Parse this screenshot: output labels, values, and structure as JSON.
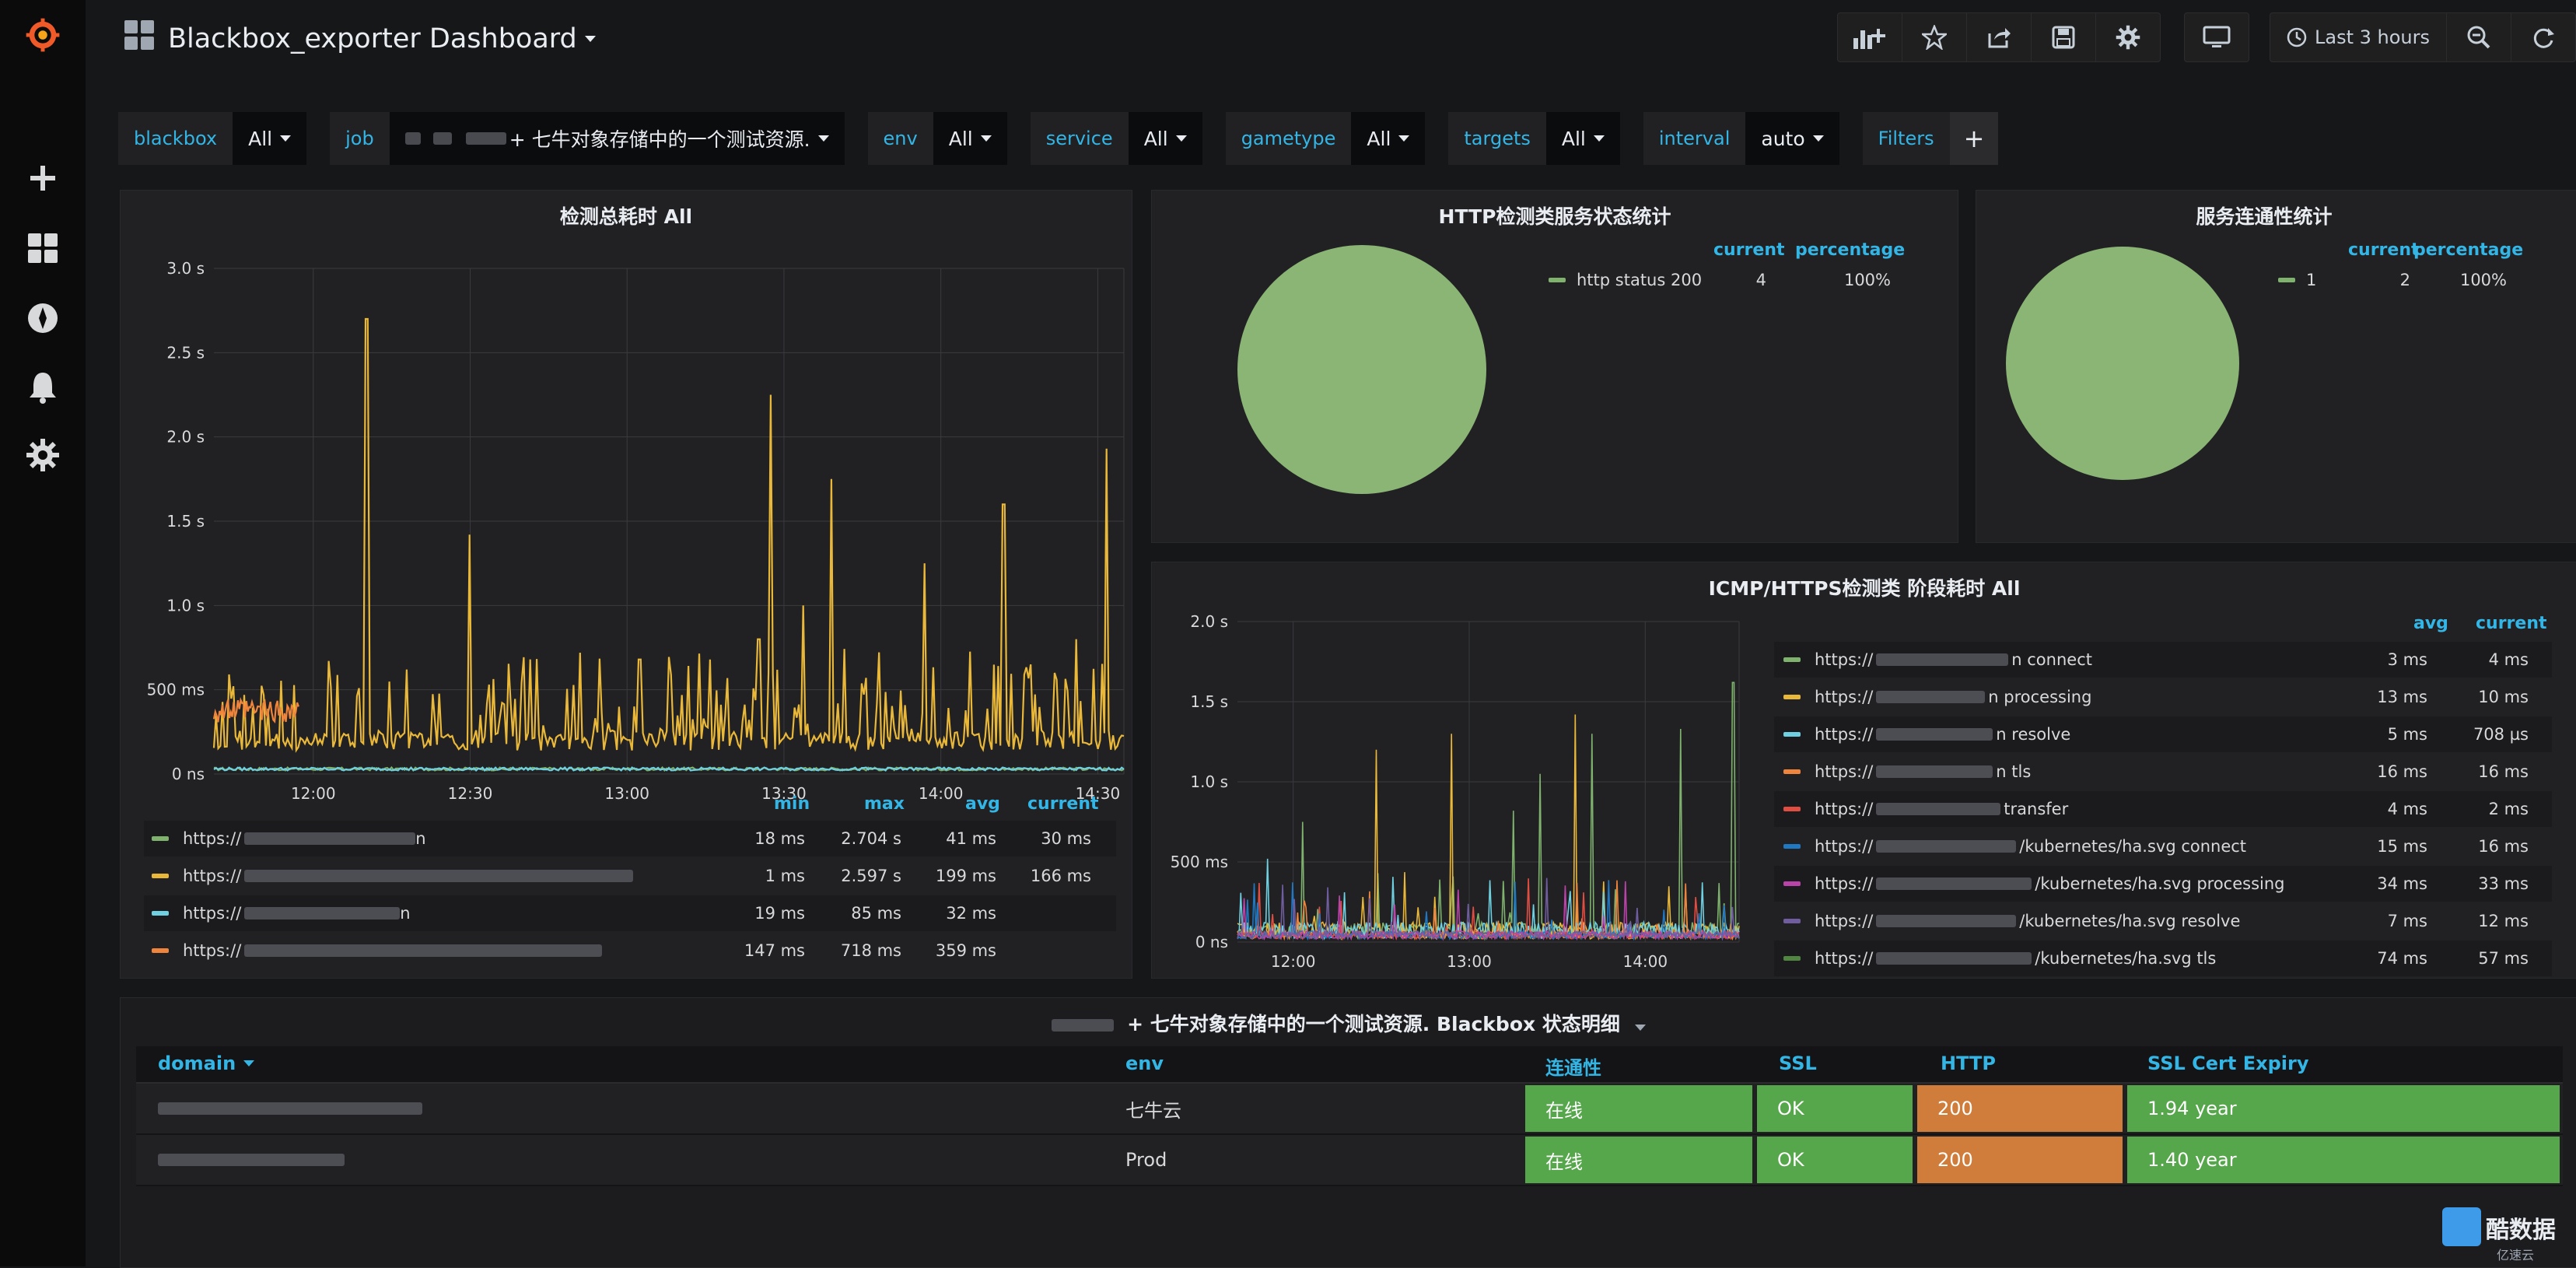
{
  "dashboard": {
    "title": "Blackbox_exporter Dashboard",
    "time_range": "Last 3 hours"
  },
  "sidebar": {
    "icons": [
      "grafana-logo-icon",
      "plus-icon",
      "dashboards-icon",
      "explore-icon",
      "alerting-bell-icon",
      "gear-icon"
    ]
  },
  "toolbar": {
    "icons": [
      "add-panel-icon",
      "star-icon",
      "share-icon",
      "save-icon",
      "settings-gear-icon",
      "tv-monitor-icon",
      "clock-icon",
      "zoom-out-icon",
      "refresh-icon"
    ]
  },
  "variables": [
    {
      "label": "blackbox",
      "value": "All"
    },
    {
      "label": "job",
      "value": "+ 七牛对象存储中的一个测试资源."
    },
    {
      "label": "env",
      "value": "All"
    },
    {
      "label": "service",
      "value": "All"
    },
    {
      "label": "gametype",
      "value": "All"
    },
    {
      "label": "targets",
      "value": "All"
    },
    {
      "label": "interval",
      "value": "auto"
    }
  ],
  "filters_label": "Filters",
  "filters_add": "+",
  "panel_probe_total": {
    "title": "检测总耗时 All",
    "legend_headers": [
      "min",
      "max",
      "avg",
      "current"
    ],
    "rows": [
      {
        "label": "https://",
        "suffix": "n",
        "min": "18 ms",
        "max": "2.704 s",
        "avg": "41 ms",
        "current": "30 ms",
        "color": "#7eb26d"
      },
      {
        "label": "https://",
        "suffix": "",
        "min": "1 ms",
        "max": "2.597 s",
        "avg": "199 ms",
        "current": "166 ms",
        "color": "#eab839"
      },
      {
        "label": "https://",
        "suffix": "n",
        "min": "19 ms",
        "max": "85 ms",
        "avg": "32 ms",
        "current": "",
        "color": "#6ed0e0"
      },
      {
        "label": "https://",
        "suffix": "",
        "min": "147 ms",
        "max": "718 ms",
        "avg": "359 ms",
        "current": "",
        "color": "#ef843c"
      }
    ]
  },
  "panel_http_status": {
    "title": "HTTP检测类服务状态统计",
    "legend_headers": [
      "current",
      "percentage"
    ],
    "rows": [
      {
        "label": "http status 200",
        "current": "4",
        "percentage": "100%",
        "color": "#7eb26d"
      }
    ]
  },
  "panel_connectivity": {
    "title": "服务连通性统计",
    "legend_headers": [
      "current",
      "percentage"
    ],
    "rows": [
      {
        "label": "1",
        "current": "2",
        "percentage": "100%",
        "color": "#7eb26d"
      }
    ]
  },
  "panel_icmp_phase": {
    "title": "ICMP/HTTPS检测类 阶段耗时 All",
    "legend_headers": [
      "avg",
      "current"
    ],
    "rows": [
      {
        "label": "https://",
        "suffix": "n connect",
        "avg": "3 ms",
        "current": "4 ms",
        "color": "#7eb26d"
      },
      {
        "label": "https://",
        "suffix": "n processing",
        "avg": "13 ms",
        "current": "10 ms",
        "color": "#eab839"
      },
      {
        "label": "https://",
        "suffix": "n resolve",
        "avg": "5 ms",
        "current": "708 µs",
        "color": "#6ed0e0"
      },
      {
        "label": "https://",
        "suffix": "n tls",
        "avg": "16 ms",
        "current": "16 ms",
        "color": "#ef843c"
      },
      {
        "label": "https://",
        "suffix": "transfer",
        "avg": "4 ms",
        "current": "2 ms",
        "color": "#e24d42"
      },
      {
        "label": "https://",
        "suffix": "/kubernetes/ha.svg connect",
        "avg": "15 ms",
        "current": "16 ms",
        "color": "#1f78c1"
      },
      {
        "label": "https://",
        "suffix": "/kubernetes/ha.svg processing",
        "avg": "34 ms",
        "current": "33 ms",
        "color": "#ba43a9"
      },
      {
        "label": "https://",
        "suffix": "/kubernetes/ha.svg resolve",
        "avg": "7 ms",
        "current": "12 ms",
        "color": "#705da0"
      },
      {
        "label": "https://",
        "suffix": "/kubernetes/ha.svg tls",
        "avg": "74 ms",
        "current": "57 ms",
        "color": "#508642"
      }
    ]
  },
  "status_table": {
    "title": "+ 七牛对象存储中的一个测试资源. Blackbox 状态明细",
    "columns": [
      "domain",
      "env",
      "连通性",
      "SSL",
      "HTTP",
      "SSL Cert Expiry"
    ],
    "rows": [
      {
        "domain": "",
        "env": "七牛云",
        "connectivity": "在线",
        "ssl": "OK",
        "http": "200",
        "expiry": "1.94 year"
      },
      {
        "domain": "",
        "env": "Prod",
        "connectivity": "在线",
        "ssl": "OK",
        "http": "200",
        "expiry": "1.40 year"
      }
    ],
    "colors": {
      "ok": "#56a64b",
      "warn": "#d07c3a"
    }
  },
  "watermark": {
    "text": "酷数据",
    "sub": "亿速云"
  },
  "chart_data": [
    {
      "type": "line",
      "title": "检测总耗时 All",
      "xlabel": "",
      "ylabel": "",
      "x_ticks": [
        "12:00",
        "12:30",
        "13:00",
        "13:30",
        "14:00",
        "14:30"
      ],
      "y_ticks": [
        "0 ns",
        "500 ms",
        "1.0 s",
        "1.5 s",
        "2.0 s",
        "2.5 s",
        "3.0 s"
      ],
      "ylim": [
        0,
        3.0
      ],
      "y_unit": "s",
      "x_range_hours": [
        "11:40",
        "14:35"
      ],
      "grid": true,
      "series": [
        {
          "color": "#7eb26d",
          "baseline": 0.03,
          "spikes": []
        },
        {
          "color": "#eab839",
          "baseline": 0.2,
          "spikes": [
            {
              "x": 12.17,
              "y": 2.7
            },
            {
              "x": 12.5,
              "y": 1.42
            },
            {
              "x": 12.3,
              "y": 0.62
            },
            {
              "x": 12.85,
              "y": 0.72
            },
            {
              "x": 13.04,
              "y": 0.68
            },
            {
              "x": 13.46,
              "y": 2.25
            },
            {
              "x": 13.42,
              "y": 0.8
            },
            {
              "x": 13.65,
              "y": 1.75
            },
            {
              "x": 13.56,
              "y": 1.0
            },
            {
              "x": 13.95,
              "y": 1.25
            },
            {
              "x": 14.2,
              "y": 1.6
            },
            {
              "x": 14.43,
              "y": 0.8
            },
            {
              "x": 14.53,
              "y": 1.93
            }
          ]
        },
        {
          "color": "#6ed0e0",
          "baseline": 0.03,
          "spikes": []
        },
        {
          "color": "#ef843c",
          "baseline": 0.36,
          "spikes": [
            {
              "x": 11.7,
              "y": 0.45
            }
          ]
        }
      ]
    },
    {
      "type": "pie",
      "title": "HTTP检测类服务状态统计",
      "labels": [
        "http status 200"
      ],
      "values": [
        4
      ]
    },
    {
      "type": "pie",
      "title": "服务连通性统计",
      "labels": [
        "1"
      ],
      "values": [
        2
      ]
    },
    {
      "type": "line",
      "title": "ICMP/HTTPS检测类 阶段耗时 All",
      "x_ticks": [
        "12:00",
        "13:00",
        "14:00"
      ],
      "y_ticks": [
        "0 ns",
        "500 ms",
        "1.0 s",
        "1.5 s",
        "2.0 s"
      ],
      "ylim": [
        0,
        2.0
      ],
      "grid": true,
      "spikes": [
        {
          "x": 12.05,
          "y": 0.75,
          "color": "#7eb26d"
        },
        {
          "x": 12.47,
          "y": 1.2,
          "color": "#eab839"
        },
        {
          "x": 12.9,
          "y": 1.3,
          "color": "#eab839"
        },
        {
          "x": 13.25,
          "y": 0.82,
          "color": "#7eb26d"
        },
        {
          "x": 13.4,
          "y": 1.05,
          "color": "#7eb26d"
        },
        {
          "x": 13.6,
          "y": 1.42,
          "color": "#eab839"
        },
        {
          "x": 13.7,
          "y": 1.3,
          "color": "#7eb26d"
        },
        {
          "x": 14.2,
          "y": 1.33,
          "color": "#7eb26d"
        },
        {
          "x": 14.5,
          "y": 1.62,
          "color": "#7eb26d"
        },
        {
          "x": 11.85,
          "y": 0.52,
          "color": "#6ed0e0"
        }
      ]
    }
  ]
}
